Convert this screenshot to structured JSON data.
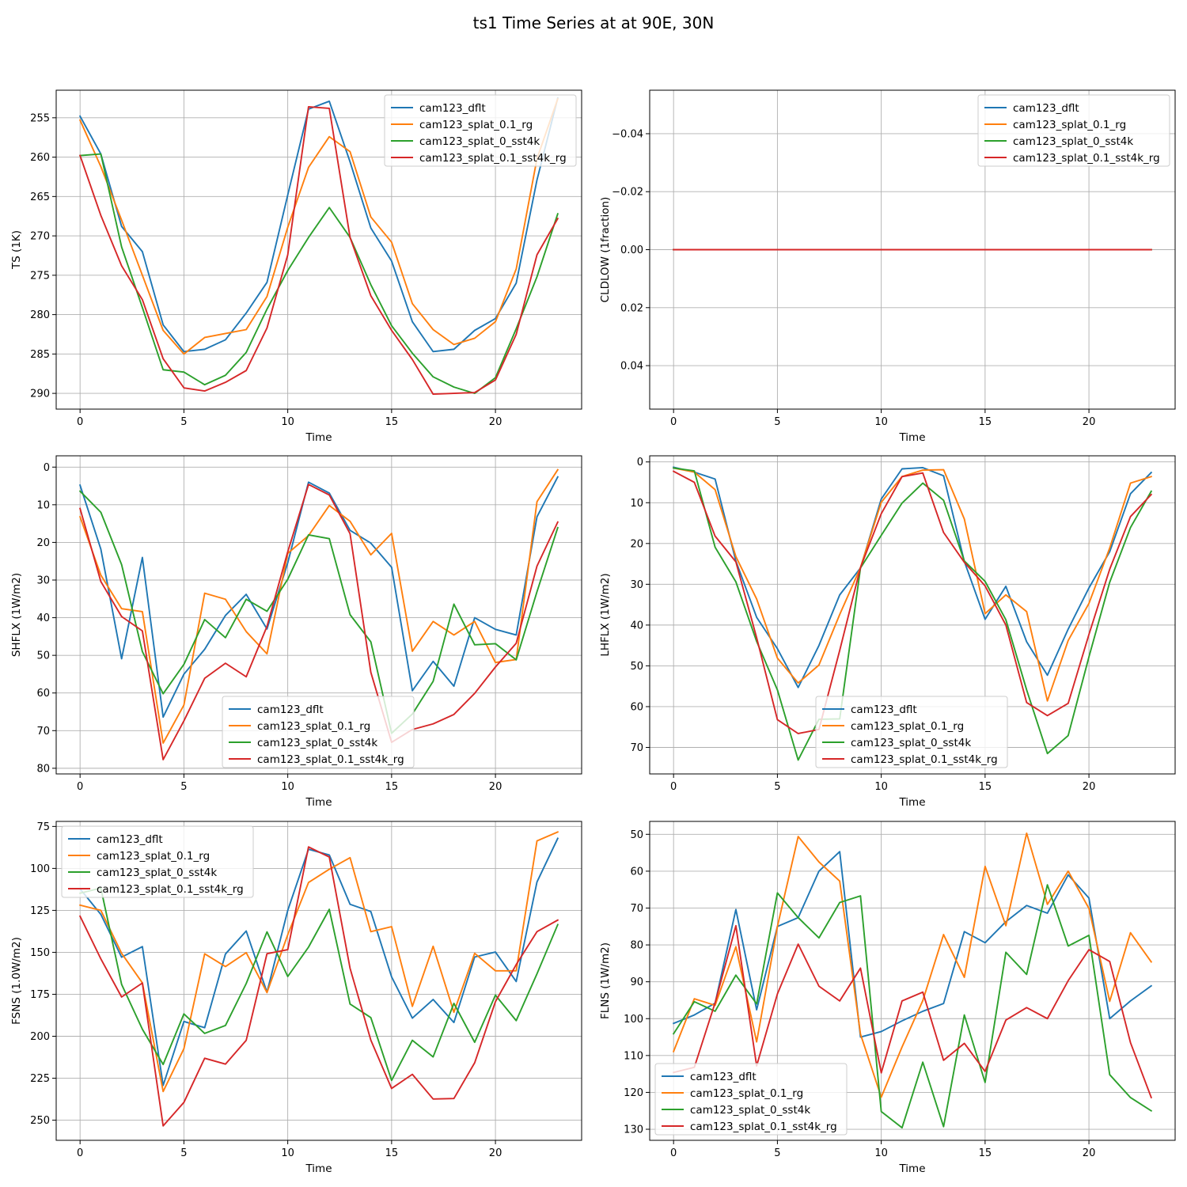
{
  "figure": {
    "title": "ts1 Time Series at at 90E, 30N"
  },
  "colors": {
    "cam123_dflt": "#1f77b4",
    "cam123_splat_0.1_rg": "#ff7f0e",
    "cam123_splat_0_sst4k": "#2ca02c",
    "cam123_splat_0.1_sst4k_rg": "#d62728"
  },
  "chart_data": [
    {
      "type": "line",
      "title": "",
      "xlabel": "Time",
      "ylabel": "TS (1K)",
      "x": [
        0,
        1,
        2,
        3,
        4,
        5,
        6,
        7,
        8,
        9,
        10,
        11,
        12,
        13,
        14,
        15,
        16,
        17,
        18,
        19,
        20,
        21,
        22,
        23
      ],
      "xlim": [
        -1.15,
        24.15
      ],
      "ylim": [
        292,
        251.5
      ],
      "inverted_y": true,
      "xticks": [
        0,
        5,
        10,
        15,
        20
      ],
      "yticks": [
        255,
        260,
        265,
        270,
        275,
        280,
        285,
        290
      ],
      "legend_loc": "upper right",
      "series": [
        {
          "name": "cam123_dflt",
          "values": [
            254.8,
            259.6,
            268.8,
            272.0,
            281.3,
            284.7,
            284.4,
            283.2,
            279.8,
            275.9,
            264.8,
            253.9,
            252.9,
            260.6,
            269.0,
            273.2,
            280.9,
            284.7,
            284.4,
            282.0,
            280.5,
            276.0,
            262.9,
            252.5
          ]
        },
        {
          "name": "cam123_splat_0.1_rg",
          "values": [
            255.3,
            261.2,
            268.0,
            275.0,
            282.0,
            285.0,
            282.9,
            282.4,
            281.9,
            277.7,
            268.9,
            261.3,
            257.4,
            259.3,
            267.6,
            270.8,
            278.6,
            281.9,
            283.8,
            283.0,
            280.9,
            274.2,
            260.2,
            252.6
          ]
        },
        {
          "name": "cam123_splat_0_sst4k",
          "values": [
            259.8,
            259.6,
            271.4,
            279.1,
            287.0,
            287.3,
            288.9,
            287.7,
            284.8,
            279.3,
            274.4,
            270.2,
            266.4,
            270.2,
            276.2,
            281.4,
            284.9,
            287.9,
            289.2,
            290.0,
            288.0,
            281.8,
            275.2,
            267.2
          ]
        },
        {
          "name": "cam123_splat_0.1_sst4k_rg",
          "values": [
            259.8,
            267.4,
            273.8,
            278.1,
            285.6,
            289.3,
            289.7,
            288.6,
            287.1,
            281.7,
            272.4,
            253.6,
            253.8,
            270.2,
            277.6,
            282.0,
            285.7,
            290.1,
            290.0,
            289.9,
            288.3,
            282.5,
            272.4,
            267.8
          ]
        }
      ]
    },
    {
      "type": "line",
      "title": "",
      "xlabel": "Time",
      "ylabel": "CLDLOW (1fraction)",
      "x": [
        0,
        1,
        2,
        3,
        4,
        5,
        6,
        7,
        8,
        9,
        10,
        11,
        12,
        13,
        14,
        15,
        16,
        17,
        18,
        19,
        20,
        21,
        22,
        23
      ],
      "xlim": [
        -1.15,
        24.15
      ],
      "ylim": [
        0.055,
        -0.055
      ],
      "inverted_y": true,
      "xticks": [
        0,
        5,
        10,
        15,
        20
      ],
      "yticks": [
        -0.04,
        -0.02,
        0.0,
        0.02,
        0.04
      ],
      "ytick_labels": [
        "−0.04",
        "−0.02",
        "0.00",
        "0.02",
        "0.04"
      ],
      "legend_loc": "upper right",
      "series": [
        {
          "name": "cam123_dflt",
          "values": [
            0,
            0,
            0,
            0,
            0,
            0,
            0,
            0,
            0,
            0,
            0,
            0,
            0,
            0,
            0,
            0,
            0,
            0,
            0,
            0,
            0,
            0,
            0,
            0
          ]
        },
        {
          "name": "cam123_splat_0.1_rg",
          "values": [
            0,
            0,
            0,
            0,
            0,
            0,
            0,
            0,
            0,
            0,
            0,
            0,
            0,
            0,
            0,
            0,
            0,
            0,
            0,
            0,
            0,
            0,
            0,
            0
          ]
        },
        {
          "name": "cam123_splat_0_sst4k",
          "values": [
            0,
            0,
            0,
            0,
            0,
            0,
            0,
            0,
            0,
            0,
            0,
            0,
            0,
            0,
            0,
            0,
            0,
            0,
            0,
            0,
            0,
            0,
            0,
            0
          ]
        },
        {
          "name": "cam123_splat_0.1_sst4k_rg",
          "values": [
            0,
            0,
            0,
            0,
            0,
            0,
            0,
            0,
            0,
            0,
            0,
            0,
            0,
            0,
            0,
            0,
            0,
            0,
            0,
            0,
            0,
            0,
            0,
            0
          ]
        }
      ]
    },
    {
      "type": "line",
      "title": "",
      "xlabel": "Time",
      "ylabel": "SHFLX (1W/m2)",
      "x": [
        0,
        1,
        2,
        3,
        4,
        5,
        6,
        7,
        8,
        9,
        10,
        11,
        12,
        13,
        14,
        15,
        16,
        17,
        18,
        19,
        20,
        21,
        22,
        23
      ],
      "xlim": [
        -1.15,
        24.15
      ],
      "ylim": [
        81.5,
        -3.0
      ],
      "inverted_y": true,
      "xticks": [
        0,
        5,
        10,
        15,
        20
      ],
      "yticks": [
        0,
        10,
        20,
        30,
        40,
        50,
        60,
        70,
        80
      ],
      "legend_loc": "lower center",
      "series": [
        {
          "name": "cam123_dflt",
          "values": [
            4.8,
            21.8,
            50.9,
            24.0,
            66.4,
            55.0,
            48.4,
            39.4,
            33.8,
            43.0,
            25.4,
            4.0,
            6.9,
            16.8,
            20.2,
            26.6,
            59.4,
            51.6,
            58.2,
            40.0,
            43.1,
            44.6,
            13.2,
            2.6
          ]
        },
        {
          "name": "cam123_splat_0.1_rg",
          "values": [
            13.2,
            28.7,
            37.6,
            38.4,
            73.3,
            63.2,
            33.5,
            35.1,
            43.7,
            49.6,
            22.9,
            18.2,
            10.2,
            14.4,
            23.3,
            17.6,
            48.9,
            41.0,
            44.6,
            41.0,
            51.9,
            51.1,
            9.2,
            0.7
          ]
        },
        {
          "name": "cam123_splat_0_sst4k",
          "values": [
            6.4,
            12.0,
            25.9,
            49.0,
            60.2,
            52.4,
            40.5,
            45.3,
            35.1,
            38.3,
            29.8,
            18.0,
            19.0,
            39.2,
            46.4,
            70.7,
            65.6,
            56.9,
            36.4,
            47.2,
            46.9,
            51.2,
            33.1,
            16.1
          ]
        },
        {
          "name": "cam123_splat_0.1_sst4k_rg",
          "values": [
            11.0,
            30.4,
            39.7,
            43.5,
            77.7,
            67.4,
            56.1,
            52.1,
            55.7,
            42.3,
            22.5,
            4.6,
            7.4,
            17.7,
            54.5,
            73.1,
            69.7,
            68.2,
            65.7,
            60.1,
            53.1,
            46.8,
            26.3,
            14.6
          ]
        }
      ]
    },
    {
      "type": "line",
      "title": "",
      "xlabel": "Time",
      "ylabel": "LHFLX (1W/m2)",
      "x": [
        0,
        1,
        2,
        3,
        4,
        5,
        6,
        7,
        8,
        9,
        10,
        11,
        12,
        13,
        14,
        15,
        16,
        17,
        18,
        19,
        20,
        21,
        22,
        23
      ],
      "xlim": [
        -1.15,
        24.15
      ],
      "ylim": [
        76.5,
        -1.5
      ],
      "inverted_y": true,
      "xticks": [
        0,
        5,
        10,
        15,
        20
      ],
      "yticks": [
        0,
        10,
        20,
        30,
        40,
        50,
        60,
        70
      ],
      "legend_loc": "lower center",
      "series": [
        {
          "name": "cam123_dflt",
          "values": [
            1.3,
            2.5,
            4.2,
            24.3,
            38.1,
            45.8,
            55.3,
            45.0,
            32.6,
            26.0,
            9.1,
            1.7,
            1.4,
            3.4,
            24.4,
            38.6,
            30.5,
            44.1,
            52.3,
            41.0,
            30.9,
            22.0,
            7.8,
            2.6
          ]
        },
        {
          "name": "cam123_splat_0.1_rg",
          "values": [
            1.5,
            2.5,
            6.8,
            23.2,
            33.6,
            48.1,
            54.2,
            49.8,
            37.4,
            25.9,
            9.9,
            3.6,
            2.0,
            1.9,
            14.0,
            37.2,
            32.6,
            36.7,
            58.6,
            43.8,
            34.7,
            21.1,
            5.2,
            3.6
          ]
        },
        {
          "name": "cam123_splat_0_sst4k",
          "values": [
            1.5,
            2.2,
            20.9,
            29.4,
            44.0,
            55.9,
            73.1,
            63.1,
            63.0,
            26.0,
            18.0,
            10.1,
            5.2,
            9.4,
            24.3,
            29.3,
            38.7,
            55.9,
            71.5,
            67.1,
            47.8,
            29.5,
            16.1,
            7.2
          ]
        },
        {
          "name": "cam123_splat_0.1_sst4k_rg",
          "values": [
            2.3,
            5.0,
            18.2,
            24.5,
            43.1,
            63.2,
            66.6,
            65.6,
            46.2,
            25.9,
            12.7,
            3.6,
            2.7,
            17.3,
            24.6,
            30.4,
            40.0,
            59.0,
            62.2,
            59.2,
            42.3,
            26.3,
            13.4,
            8.0
          ]
        }
      ]
    },
    {
      "type": "line",
      "title": "",
      "xlabel": "Time",
      "ylabel": "FSNS (1.0W/m2)",
      "x": [
        0,
        1,
        2,
        3,
        4,
        5,
        6,
        7,
        8,
        9,
        10,
        11,
        12,
        13,
        14,
        15,
        16,
        17,
        18,
        19,
        20,
        21,
        22,
        23
      ],
      "xlim": [
        -1.15,
        24.15
      ],
      "ylim": [
        262,
        72
      ],
      "inverted_y": true,
      "xticks": [
        0,
        5,
        10,
        15,
        20
      ],
      "yticks": [
        75,
        100,
        125,
        150,
        175,
        200,
        225,
        250
      ],
      "legend_loc": "upper left",
      "series": [
        {
          "name": "cam123_dflt",
          "values": [
            112.2,
            127.4,
            152.9,
            146.6,
            229.3,
            191.2,
            194.9,
            151.0,
            137.3,
            173.8,
            125.0,
            88.6,
            92.0,
            121.4,
            125.7,
            164.6,
            189.2,
            178.1,
            191.8,
            152.8,
            149.8,
            167.4,
            108.1,
            82.1
          ]
        },
        {
          "name": "cam123_splat_0.1_rg",
          "values": [
            121.9,
            125.0,
            150.6,
            168.2,
            232.9,
            207.4,
            150.9,
            158.5,
            150.2,
            174.0,
            139.5,
            108.4,
            100.5,
            93.6,
            137.7,
            134.7,
            182.2,
            146.4,
            185.7,
            150.6,
            161.0,
            161.0,
            83.6,
            78.3
          ]
        },
        {
          "name": "cam123_splat_0_sst4k",
          "values": [
            114.8,
            111.7,
            169.1,
            195.8,
            216.8,
            186.7,
            198.3,
            193.6,
            168.6,
            137.8,
            164.4,
            146.9,
            124.4,
            180.8,
            188.9,
            226.3,
            202.4,
            212.3,
            180.4,
            203.6,
            175.5,
            190.7,
            162.8,
            133.5
          ]
        },
        {
          "name": "cam123_splat_0.1_sst4k_rg",
          "values": [
            128.5,
            153.9,
            176.6,
            168.3,
            253.4,
            239.4,
            213.1,
            216.6,
            202.4,
            150.8,
            148.4,
            87.2,
            93.2,
            159.5,
            202.3,
            231.1,
            222.7,
            237.4,
            237.1,
            215.8,
            179.4,
            157.3,
            137.7,
            130.8
          ]
        }
      ]
    },
    {
      "type": "line",
      "title": "",
      "xlabel": "Time",
      "ylabel": "FLNS (1W/m2)",
      "x": [
        0,
        1,
        2,
        3,
        4,
        5,
        6,
        7,
        8,
        9,
        10,
        11,
        12,
        13,
        14,
        15,
        16,
        17,
        18,
        19,
        20,
        21,
        22,
        23
      ],
      "xlim": [
        -1.15,
        24.15
      ],
      "ylim": [
        133,
        46.5
      ],
      "inverted_y": true,
      "xticks": [
        0,
        5,
        10,
        15,
        20
      ],
      "yticks": [
        50,
        60,
        70,
        80,
        90,
        100,
        110,
        120,
        130
      ],
      "legend_loc": "lower left",
      "series": [
        {
          "name": "cam123_dflt",
          "values": [
            101.3,
            99.0,
            95.8,
            70.4,
            97.6,
            75.0,
            72.6,
            60.0,
            54.7,
            105.0,
            103.5,
            100.6,
            98.0,
            95.9,
            76.4,
            79.4,
            73.7,
            69.3,
            71.4,
            61.0,
            67.3,
            100.0,
            95.2,
            91.1
          ]
        },
        {
          "name": "cam123_splat_0.1_rg",
          "values": [
            108.9,
            94.6,
            96.4,
            80.5,
            106.3,
            75.0,
            50.6,
            57.5,
            62.7,
            104.2,
            121.3,
            107.7,
            95.1,
            77.2,
            88.8,
            58.7,
            74.8,
            49.7,
            69.0,
            60.0,
            70.1,
            95.3,
            76.7,
            84.6
          ]
        },
        {
          "name": "cam123_splat_0_sst4k",
          "values": [
            104.1,
            95.4,
            98.0,
            88.2,
            96.0,
            65.9,
            72.6,
            78.1,
            68.5,
            66.7,
            125.2,
            129.6,
            111.8,
            129.3,
            99.0,
            117.3,
            82.0,
            88.0,
            63.7,
            80.3,
            77.4,
            115.2,
            121.4,
            125.0
          ]
        },
        {
          "name": "cam123_splat_0.1_sst4k_rg",
          "values": [
            114.6,
            113.2,
            95.7,
            74.8,
            112.8,
            93.3,
            79.8,
            91.2,
            95.2,
            86.3,
            114.7,
            95.2,
            92.8,
            111.3,
            106.7,
            114.3,
            100.4,
            97.0,
            100.0,
            89.7,
            81.3,
            84.5,
            106.5,
            121.4
          ]
        }
      ]
    }
  ]
}
